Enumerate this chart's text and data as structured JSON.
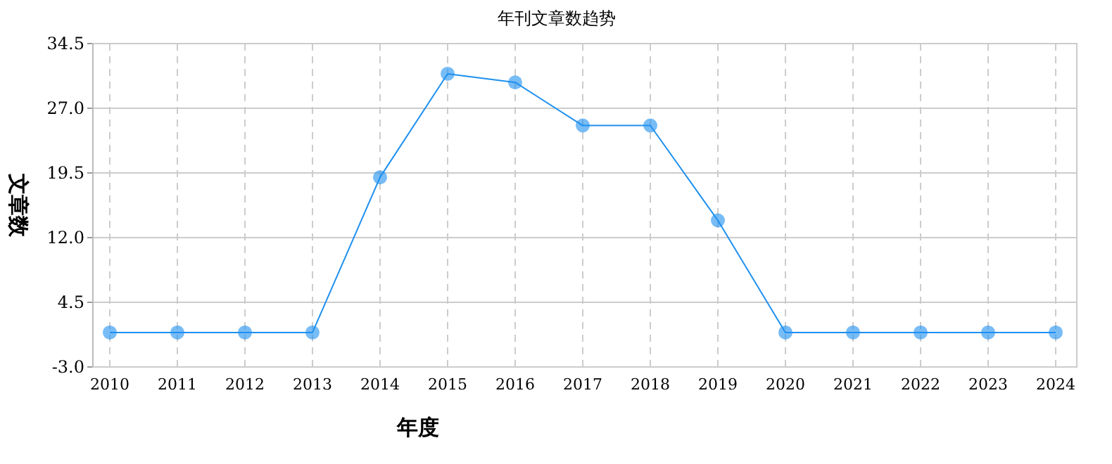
{
  "chart_data": {
    "type": "line",
    "title": "年刊文章数趋势",
    "xlabel": "年度",
    "ylabel": "文章数",
    "categories": [
      "2010",
      "2011",
      "2012",
      "2013",
      "2014",
      "2015",
      "2016",
      "2017",
      "2018",
      "2019",
      "2020",
      "2021",
      "2022",
      "2023",
      "2024"
    ],
    "series": [
      {
        "color": "#1e90f0",
        "values": [
          1,
          1,
          1,
          1,
          19,
          31,
          30,
          25,
          25,
          14,
          1,
          1,
          1,
          1,
          1
        ]
      }
    ],
    "ylim": [
      -3,
      34.5
    ],
    "yticks": [
      {
        "value": -3,
        "label": "-3.0"
      },
      {
        "value": 4.5,
        "label": "4.5"
      },
      {
        "value": 12,
        "label": "12.0"
      },
      {
        "value": 19.5,
        "label": "19.5"
      },
      {
        "value": 27,
        "label": "27.0"
      },
      {
        "value": 34.5,
        "label": "34.5"
      }
    ],
    "grid": true,
    "marker": "circle",
    "line_style": "solid"
  }
}
